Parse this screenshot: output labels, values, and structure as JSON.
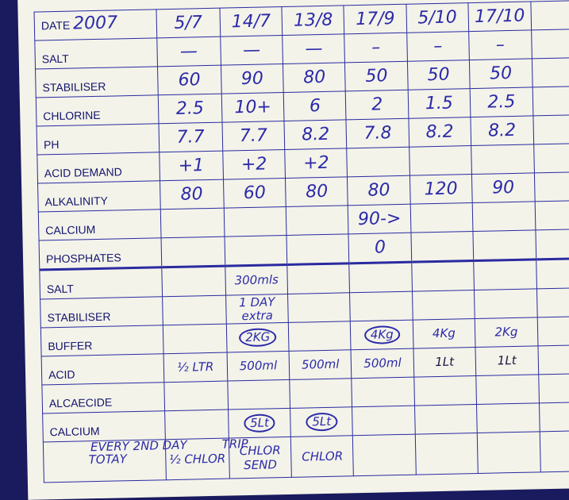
{
  "header": {
    "date_label": "DATE",
    "year": "2007",
    "dates": [
      "5/7",
      "14/7",
      "13/8",
      "17/9",
      "5/10",
      "17/10"
    ]
  },
  "readings": [
    {
      "label": "SALT",
      "values": [
        "—",
        "—",
        "—",
        "–",
        "–",
        "–"
      ]
    },
    {
      "label": "STABILISER",
      "values": [
        "60",
        "90",
        "80",
        "50",
        "50",
        "50"
      ]
    },
    {
      "label": "CHLORINE",
      "values": [
        "2.5",
        "10+",
        "6",
        "2",
        "1.5",
        "2.5"
      ]
    },
    {
      "label": "PH",
      "values": [
        "7.7",
        "7.7",
        "8.2",
        "7.8",
        "8.2",
        "8.2"
      ]
    },
    {
      "label": "ACID DEMAND",
      "values": [
        "+1",
        "+2",
        "+2",
        "",
        "",
        ""
      ]
    },
    {
      "label": "ALKALINITY",
      "values": [
        "80",
        "60",
        "80",
        "80",
        "120",
        "90"
      ]
    },
    {
      "label": "CALCIUM",
      "values": [
        "",
        "",
        "",
        "90->",
        "",
        ""
      ]
    },
    {
      "label": "PHOSPHATES",
      "values": [
        "",
        "",
        "",
        "0",
        "",
        ""
      ]
    }
  ],
  "additions": [
    {
      "label": "SALT",
      "values": [
        "",
        "300mls",
        "",
        "",
        "",
        ""
      ]
    },
    {
      "label": "STABILISER",
      "values": [
        "",
        "1 DAY extra",
        "",
        "",
        "",
        ""
      ]
    },
    {
      "label": "BUFFER",
      "values": [
        "",
        "2KG",
        "",
        "4Kg",
        "4Kg",
        "2Kg"
      ]
    },
    {
      "label": "ACID",
      "values": [
        "½ LTR",
        "500ml",
        "500ml",
        "500ml",
        "1Lt",
        "1Lt"
      ]
    },
    {
      "label": "ALCAECIDE",
      "values": [
        "",
        "",
        "",
        "",
        "",
        ""
      ]
    },
    {
      "label": "CALCIUM",
      "values": [
        "",
        "5Lt",
        "5Lt",
        "",
        "",
        ""
      ]
    }
  ],
  "notes": {
    "total": "TOTAY",
    "half_chlor": "½ CHLOR",
    "chlor_5lt": "CHLOR",
    "alcaecide_5lt": "CHLOR",
    "every": "EVERY 2ND DAY",
    "send": "SEND",
    "trip": "TRIP"
  },
  "colors": {
    "ink": "#2c2aa8",
    "card": "#f3f3ea",
    "grid": "#2a2aa0",
    "background": "#1a1a5e"
  }
}
